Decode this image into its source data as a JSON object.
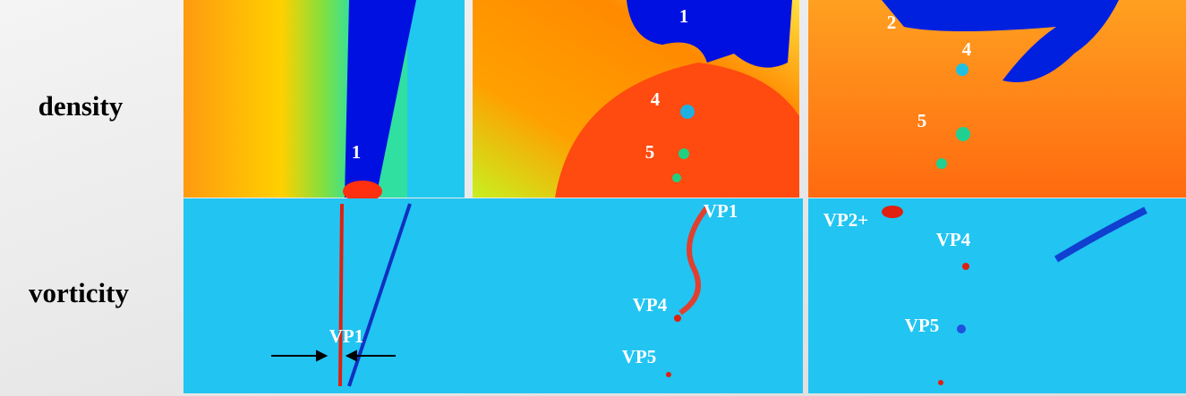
{
  "row_labels": [
    "density",
    "vorticity"
  ],
  "density_panels": [
    {
      "annotations": [
        "1"
      ]
    },
    {
      "annotations": [
        "1",
        "4",
        "5"
      ]
    },
    {
      "annotations": [
        "2",
        "4",
        "5"
      ]
    }
  ],
  "vorticity_panels": [
    {
      "annotations": [
        "VP1"
      ]
    },
    {
      "annotations": [
        "VP1",
        "VP4",
        "VP5"
      ]
    },
    {
      "annotations": [
        "VP2+",
        "VP4",
        "VP5"
      ]
    }
  ]
}
